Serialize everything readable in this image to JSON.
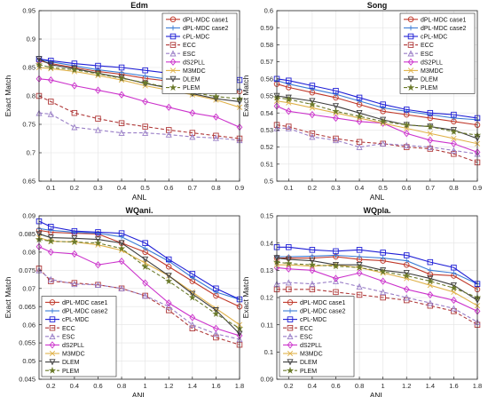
{
  "chart_data": [
    {
      "type": "line",
      "title": "Edm",
      "xlabel": "ANL",
      "ylabel": "Exact Match",
      "x": [
        0.05,
        0.1,
        0.2,
        0.3,
        0.4,
        0.5,
        0.6,
        0.7,
        0.8,
        0.9
      ],
      "xlim": [
        0.05,
        0.9
      ],
      "ylim": [
        0.65,
        0.95
      ],
      "xticks": [
        0.1,
        0.2,
        0.3,
        0.4,
        0.5,
        0.6,
        0.7,
        0.8,
        0.9
      ],
      "yticks": [
        0.65,
        0.7,
        0.75,
        0.8,
        0.85,
        0.9,
        0.95
      ],
      "xtick_labels": [
        "0.1",
        "0.2",
        "0.3",
        "0.4",
        "0.5",
        "0.6",
        "0.7",
        "0.8",
        "0.9"
      ],
      "ytick_labels": [
        "0.65",
        "0.7",
        "0.75",
        "0.8",
        "0.85",
        "0.9",
        "0.95"
      ],
      "legend_position": "top-right",
      "series": [
        {
          "name": "dPL-MDC case1",
          "values": [
            0.862,
            0.857,
            0.85,
            0.843,
            0.838,
            0.831,
            0.826,
            0.818,
            0.812,
            0.808
          ]
        },
        {
          "name": "dPL-MDC case2",
          "values": [
            0.865,
            0.86,
            0.853,
            0.846,
            0.841,
            0.835,
            0.829,
            0.822,
            0.815,
            0.811
          ]
        },
        {
          "name": "cPL-MDC",
          "values": [
            0.865,
            0.862,
            0.857,
            0.853,
            0.85,
            0.845,
            0.84,
            0.836,
            0.831,
            0.828
          ]
        },
        {
          "name": "ECC",
          "values": [
            0.8,
            0.79,
            0.77,
            0.76,
            0.752,
            0.746,
            0.74,
            0.735,
            0.73,
            0.725
          ]
        },
        {
          "name": "ESC",
          "values": [
            0.77,
            0.768,
            0.745,
            0.74,
            0.735,
            0.735,
            0.732,
            0.728,
            0.726,
            0.722
          ]
        },
        {
          "name": "dS2PLL",
          "values": [
            0.83,
            0.828,
            0.818,
            0.81,
            0.802,
            0.79,
            0.78,
            0.77,
            0.763,
            0.745
          ]
        },
        {
          "name": "M3MDC",
          "values": [
            0.85,
            0.848,
            0.843,
            0.836,
            0.828,
            0.818,
            0.81,
            0.802,
            0.793,
            0.78
          ]
        },
        {
          "name": "DLEM",
          "values": [
            0.865,
            0.855,
            0.848,
            0.84,
            0.832,
            0.822,
            0.814,
            0.804,
            0.795,
            0.79
          ]
        },
        {
          "name": "PLEM",
          "values": [
            0.855,
            0.85,
            0.846,
            0.839,
            0.831,
            0.823,
            0.815,
            0.806,
            0.799,
            0.795
          ]
        }
      ]
    },
    {
      "type": "line",
      "title": "Song",
      "xlabel": "ANL",
      "ylabel": "Exact Match",
      "x": [
        0.05,
        0.1,
        0.2,
        0.3,
        0.4,
        0.5,
        0.6,
        0.7,
        0.8,
        0.9
      ],
      "xlim": [
        0.05,
        0.9
      ],
      "ylim": [
        0.5,
        0.6
      ],
      "xticks": [
        0.1,
        0.2,
        0.3,
        0.4,
        0.5,
        0.6,
        0.7,
        0.8,
        0.9
      ],
      "yticks": [
        0.5,
        0.51,
        0.52,
        0.53,
        0.54,
        0.55,
        0.56,
        0.57,
        0.58,
        0.59,
        0.6
      ],
      "xtick_labels": [
        "0.1",
        "0.2",
        "0.3",
        "0.4",
        "0.5",
        "0.6",
        "0.7",
        "0.8",
        "0.9"
      ],
      "ytick_labels": [
        "0.5",
        "0.51",
        "0.52",
        "0.53",
        "0.54",
        "0.55",
        "0.56",
        "0.57",
        "0.58",
        "0.59",
        "0.6"
      ],
      "legend_position": "top-right",
      "series": [
        {
          "name": "dPL-MDC case1",
          "values": [
            0.557,
            0.555,
            0.552,
            0.549,
            0.545,
            0.541,
            0.539,
            0.537,
            0.535,
            0.533
          ]
        },
        {
          "name": "dPL-MDC case2",
          "values": [
            0.559,
            0.557,
            0.554,
            0.551,
            0.547,
            0.543,
            0.541,
            0.539,
            0.537,
            0.536
          ]
        },
        {
          "name": "cPL-MDC",
          "values": [
            0.56,
            0.559,
            0.556,
            0.553,
            0.549,
            0.545,
            0.542,
            0.54,
            0.539,
            0.537
          ]
        },
        {
          "name": "ECC",
          "values": [
            0.533,
            0.532,
            0.528,
            0.525,
            0.523,
            0.522,
            0.52,
            0.519,
            0.516,
            0.511
          ]
        },
        {
          "name": "ESC",
          "values": [
            0.531,
            0.531,
            0.526,
            0.524,
            0.52,
            0.522,
            0.521,
            0.52,
            0.518,
            0.516
          ]
        },
        {
          "name": "dS2PLL",
          "values": [
            0.544,
            0.541,
            0.539,
            0.537,
            0.535,
            0.534,
            0.528,
            0.524,
            0.522,
            0.517
          ]
        },
        {
          "name": "M3MDC",
          "values": [
            0.547,
            0.546,
            0.543,
            0.54,
            0.537,
            0.534,
            0.531,
            0.528,
            0.525,
            0.522
          ]
        },
        {
          "name": "DLEM",
          "values": [
            0.55,
            0.549,
            0.547,
            0.544,
            0.54,
            0.536,
            0.533,
            0.532,
            0.53,
            0.525
          ]
        },
        {
          "name": "PLEM",
          "values": [
            0.549,
            0.548,
            0.545,
            0.541,
            0.538,
            0.535,
            0.533,
            0.532,
            0.529,
            0.527
          ]
        }
      ]
    },
    {
      "type": "line",
      "title": "WQani.",
      "xlabel": "ANL",
      "ylabel": "Exact Match",
      "x": [
        0.1,
        0.2,
        0.4,
        0.6,
        0.8,
        1.0,
        1.2,
        1.4,
        1.6,
        1.8
      ],
      "xlim": [
        0.1,
        1.8
      ],
      "ylim": [
        0.045,
        0.09
      ],
      "xticks": [
        0.2,
        0.4,
        0.6,
        0.8,
        1,
        1.2,
        1.4,
        1.6,
        1.8
      ],
      "yticks": [
        0.045,
        0.05,
        0.055,
        0.06,
        0.065,
        0.07,
        0.075,
        0.08,
        0.085,
        0.09
      ],
      "xtick_labels": [
        "0.2",
        "0.4",
        "0.6",
        "0.8",
        "1",
        "1.2",
        "1.4",
        "1.6",
        "1.8"
      ],
      "ytick_labels": [
        "0.045",
        "0.05",
        "0.055",
        "0.06",
        "0.065",
        "0.07",
        "0.075",
        "0.08",
        "0.085",
        "0.09"
      ],
      "legend_position": "bottom-left",
      "series": [
        {
          "name": "dPL-MDC case1",
          "values": [
            0.086,
            0.0855,
            0.0852,
            0.085,
            0.0825,
            0.08,
            0.076,
            0.072,
            0.068,
            0.065
          ]
        },
        {
          "name": "dPL-MDC case2",
          "values": [
            0.0865,
            0.086,
            0.0855,
            0.0852,
            0.0842,
            0.081,
            0.0775,
            0.073,
            0.069,
            0.067
          ]
        },
        {
          "name": "cPL-MDC",
          "values": [
            0.0885,
            0.087,
            0.0858,
            0.0855,
            0.0852,
            0.0825,
            0.078,
            0.074,
            0.07,
            0.067
          ]
        },
        {
          "name": "ECC",
          "values": [
            0.0755,
            0.072,
            0.0715,
            0.071,
            0.07,
            0.068,
            0.064,
            0.059,
            0.0565,
            0.0545
          ]
        },
        {
          "name": "ESC",
          "values": [
            0.075,
            0.0725,
            0.0712,
            0.071,
            0.07,
            0.068,
            0.065,
            0.06,
            0.0575,
            0.056
          ]
        },
        {
          "name": "dS2PLL",
          "values": [
            0.0815,
            0.08,
            0.0795,
            0.0765,
            0.0775,
            0.0715,
            0.066,
            0.062,
            0.059,
            0.057
          ]
        },
        {
          "name": "M3MDC",
          "values": [
            0.084,
            0.083,
            0.0828,
            0.082,
            0.0805,
            0.077,
            0.0735,
            0.069,
            0.0645,
            0.06
          ]
        },
        {
          "name": "DLEM",
          "values": [
            0.085,
            0.084,
            0.0838,
            0.0835,
            0.0825,
            0.078,
            0.0735,
            0.0685,
            0.064,
            0.0575
          ]
        },
        {
          "name": "PLEM",
          "values": [
            0.0835,
            0.083,
            0.0828,
            0.0825,
            0.081,
            0.076,
            0.072,
            0.0675,
            0.063,
            0.059
          ]
        }
      ]
    },
    {
      "type": "line",
      "title": "WQpla.",
      "xlabel": "ANL",
      "ylabel": "Exact Match",
      "x": [
        0.1,
        0.2,
        0.4,
        0.6,
        0.8,
        1.0,
        1.2,
        1.4,
        1.6,
        1.8
      ],
      "xlim": [
        0.1,
        1.8
      ],
      "ylim": [
        0.09,
        0.15
      ],
      "xticks": [
        0.2,
        0.4,
        0.6,
        0.8,
        1,
        1.2,
        1.4,
        1.6,
        1.8
      ],
      "yticks": [
        0.09,
        0.1,
        0.11,
        0.12,
        0.13,
        0.14,
        0.15
      ],
      "xtick_labels": [
        "0.2",
        "0.4",
        "0.6",
        "0.8",
        "1",
        "1.2",
        "1.4",
        "1.6",
        "1.8"
      ],
      "ytick_labels": [
        "0.09",
        "0.1",
        "0.11",
        "0.12",
        "0.13",
        "0.14",
        "0.15"
      ],
      "legend_position": "bottom-left",
      "series": [
        {
          "name": "dPL-MDC case1",
          "values": [
            0.1345,
            0.1345,
            0.1345,
            0.135,
            0.134,
            0.1335,
            0.132,
            0.1285,
            0.128,
            0.123
          ]
        },
        {
          "name": "dPL-MDC case2",
          "values": [
            0.135,
            0.135,
            0.1352,
            0.1355,
            0.135,
            0.1345,
            0.1335,
            0.13,
            0.129,
            0.125
          ]
        },
        {
          "name": "cPL-MDC",
          "values": [
            0.1385,
            0.1385,
            0.1375,
            0.137,
            0.1375,
            0.1365,
            0.1355,
            0.133,
            0.131,
            0.125
          ]
        },
        {
          "name": "ECC",
          "values": [
            0.123,
            0.123,
            0.123,
            0.122,
            0.121,
            0.12,
            0.119,
            0.117,
            0.115,
            0.11
          ]
        },
        {
          "name": "ESC",
          "values": [
            0.125,
            0.1255,
            0.125,
            0.126,
            0.124,
            0.122,
            0.12,
            0.118,
            0.116,
            0.111
          ]
        },
        {
          "name": "dS2PLL",
          "values": [
            0.131,
            0.1305,
            0.13,
            0.127,
            0.129,
            0.126,
            0.123,
            0.121,
            0.119,
            0.115
          ]
        },
        {
          "name": "M3MDC",
          "values": [
            0.132,
            0.132,
            0.1315,
            0.132,
            0.131,
            0.129,
            0.127,
            0.1245,
            0.122,
            0.117
          ]
        },
        {
          "name": "DLEM",
          "values": [
            0.1345,
            0.134,
            0.1335,
            0.132,
            0.132,
            0.13,
            0.129,
            0.127,
            0.1245,
            0.119
          ]
        },
        {
          "name": "PLEM",
          "values": [
            0.133,
            0.1325,
            0.132,
            0.1315,
            0.131,
            0.1295,
            0.128,
            0.126,
            0.1235,
            0.12
          ]
        }
      ]
    }
  ],
  "series_styles": [
    {
      "color": "#c0392b",
      "marker": "circle",
      "dash": "solid"
    },
    {
      "color": "#3a7bd5",
      "marker": "plus",
      "dash": "solid"
    },
    {
      "color": "#1f1fd6",
      "marker": "square",
      "dash": "solid"
    },
    {
      "color": "#b03a3a",
      "marker": "square",
      "dash": "dashed"
    },
    {
      "color": "#9a7fc7",
      "marker": "triangle-up",
      "dash": "dashed"
    },
    {
      "color": "#cc33cc",
      "marker": "diamond",
      "dash": "solid"
    },
    {
      "color": "#e0b24a",
      "marker": "x",
      "dash": "solid"
    },
    {
      "color": "#3d3d3d",
      "marker": "triangle-down",
      "dash": "solid"
    },
    {
      "color": "#6b7a2a",
      "marker": "star",
      "dash": "dashed"
    }
  ]
}
